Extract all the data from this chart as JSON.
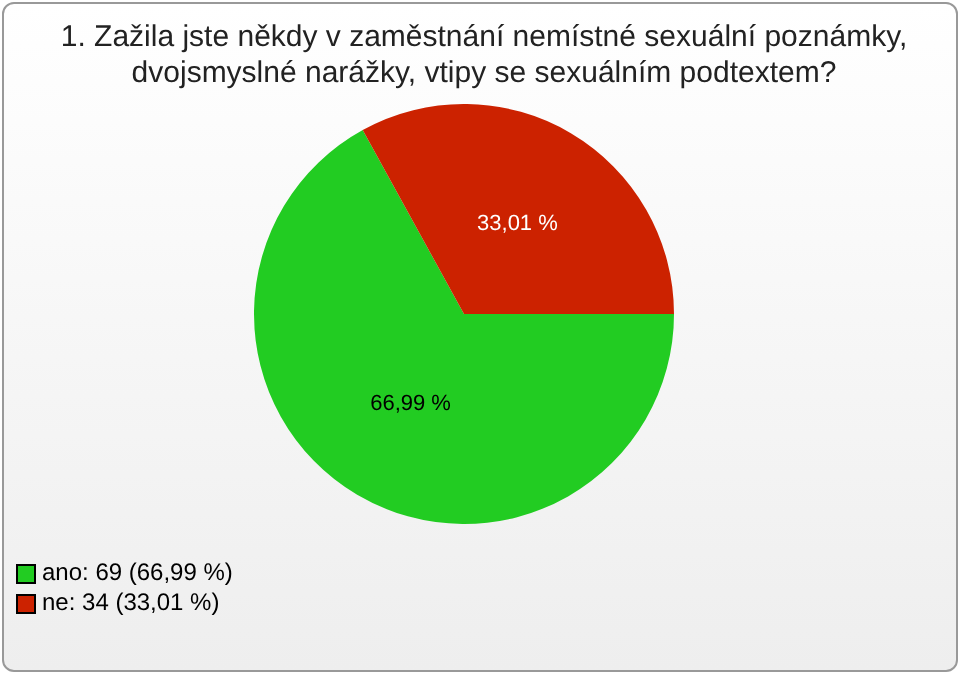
{
  "chart_data": {
    "type": "pie",
    "title": "1. Zažila jste někdy v zaměstnání nemístné sexuální poznámky, dvojsmyslné narážky, vtipy se sexuálním podtextem?",
    "categories": [
      "ano: 69 (66,99 %)",
      "ne: 34 (33,01 %)"
    ],
    "values": [
      66.99,
      33.01
    ],
    "colors": [
      "#22cc22",
      "#cc2200"
    ],
    "value_labels": [
      "66,99 %",
      "33,01 %"
    ],
    "legend": "bottom left"
  }
}
